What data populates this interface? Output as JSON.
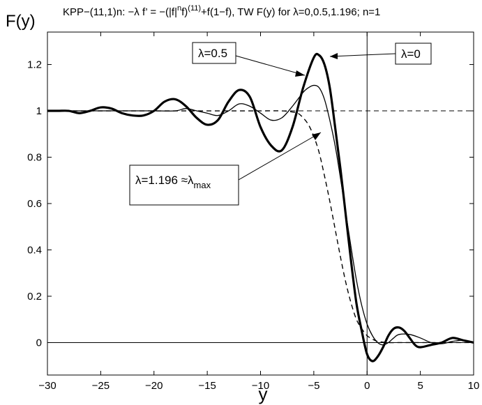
{
  "chart_data": {
    "type": "line",
    "title_prefix": "KPP−(11,1)n: −",
    "title_lambda": "λ",
    "title_mid": " f’ = −(|f|",
    "title_sup_n": "n",
    "title_mid2": "f)",
    "title_sup_11": "(11)",
    "title_suffix": "+f(1−f), TW F(y) for λ=0,0.5,1.196;  n=1",
    "xlabel": "y",
    "ylabel": "F(y)",
    "xlim": [
      -30,
      10
    ],
    "ylim": [
      -0.14,
      1.34
    ],
    "xticks": [
      -30,
      -25,
      -20,
      -15,
      -10,
      -5,
      0,
      5,
      10
    ],
    "yticks": [
      0,
      0.2,
      0.4,
      0.6,
      0.8,
      1,
      1.2
    ],
    "xtick_labels": [
      "−30",
      "−25",
      "−20",
      "−15",
      "−10",
      "−5",
      "0",
      "5",
      "10"
    ],
    "ytick_labels": [
      "0",
      "0.2",
      "0.4",
      "0.6",
      "0.8",
      "1",
      "1.2"
    ],
    "grid": false,
    "reference_lines": [
      {
        "orientation": "horizontal",
        "value": 0,
        "style": "solid"
      },
      {
        "orientation": "horizontal",
        "value": 1,
        "style": "dashed"
      },
      {
        "orientation": "vertical",
        "value": 0,
        "style": "solid"
      }
    ],
    "series": [
      {
        "style": "thick-solid",
        "x": [
          -30,
          -29,
          -28,
          -27,
          -26,
          -25,
          -24,
          -23,
          -22,
          -21,
          -20,
          -19,
          -18,
          -17,
          -16,
          -15,
          -14,
          -13,
          -12,
          -11,
          -10,
          -9,
          -8,
          -7,
          -6,
          -5,
          -4.5,
          -4,
          -3.5,
          -3,
          -2.5,
          -2,
          -1.5,
          -1,
          -0.5,
          0,
          0.5,
          1,
          1.5,
          2,
          2.5,
          3,
          3.5,
          4,
          4.5,
          5,
          6,
          7,
          8,
          9,
          10
        ],
        "y": [
          1.0,
          1.0,
          1.0,
          0.99,
          1.0,
          1.015,
          1.01,
          0.99,
          0.98,
          0.98,
          1.0,
          1.04,
          1.05,
          1.02,
          0.97,
          0.94,
          0.96,
          1.04,
          1.09,
          1.06,
          0.93,
          0.85,
          0.83,
          0.93,
          1.1,
          1.23,
          1.24,
          1.2,
          1.1,
          0.93,
          0.75,
          0.55,
          0.35,
          0.17,
          0.05,
          -0.05,
          -0.08,
          -0.06,
          -0.02,
          0.03,
          0.06,
          0.065,
          0.05,
          0.02,
          -0.01,
          -0.02,
          -0.01,
          0.0,
          0.02,
          0.01,
          0.0
        ]
      },
      {
        "style": "thin-solid",
        "x": [
          -30,
          -28,
          -26,
          -24,
          -22,
          -20,
          -18,
          -17,
          -16,
          -15,
          -14,
          -13,
          -12,
          -11,
          -10,
          -9,
          -8,
          -7,
          -6,
          -5.5,
          -5,
          -4.5,
          -4,
          -3.5,
          -3,
          -2.5,
          -2,
          -1.5,
          -1,
          -0.5,
          0,
          0.5,
          1,
          1.5,
          2,
          2.5,
          3,
          4,
          5,
          6,
          7,
          8,
          9,
          10
        ],
        "y": [
          1.0,
          1.0,
          1.0,
          1.0,
          1.0,
          1.0,
          1.0,
          1.01,
          1.0,
          0.99,
          0.98,
          1.0,
          1.03,
          1.02,
          0.99,
          0.96,
          0.97,
          1.02,
          1.08,
          1.1,
          1.11,
          1.1,
          1.05,
          0.96,
          0.85,
          0.71,
          0.56,
          0.41,
          0.27,
          0.16,
          0.08,
          0.03,
          0.0,
          -0.01,
          0.0,
          0.02,
          0.035,
          0.035,
          0.02,
          0.0,
          -0.005,
          0.005,
          0.01,
          0.0
        ]
      },
      {
        "style": "dashed",
        "x": [
          -30,
          -25,
          -20,
          -15,
          -10,
          -8,
          -7,
          -6.5,
          -6,
          -5.5,
          -5,
          -4.5,
          -4,
          -3.5,
          -3,
          -2.5,
          -2,
          -1.5,
          -1,
          -0.5,
          0,
          0.5,
          1,
          2,
          3,
          5,
          10
        ],
        "y": [
          1.0,
          1.0,
          1.0,
          1.0,
          1.0,
          1.0,
          0.995,
          0.99,
          0.97,
          0.94,
          0.89,
          0.82,
          0.72,
          0.61,
          0.49,
          0.37,
          0.26,
          0.17,
          0.1,
          0.06,
          0.03,
          0.015,
          0.005,
          0.0,
          0.0,
          0.0,
          0.0
        ]
      }
    ],
    "annotations": [
      {
        "lambda_sym": "λ",
        "value_text": "=0.5",
        "sub": ""
      },
      {
        "lambda_sym": "λ",
        "value_text": "=0",
        "sub": ""
      },
      {
        "lambda_sym": "λ",
        "value_text": "=1.196 ≈",
        "lambda_sym2": "λ",
        "sub": "max"
      }
    ]
  }
}
